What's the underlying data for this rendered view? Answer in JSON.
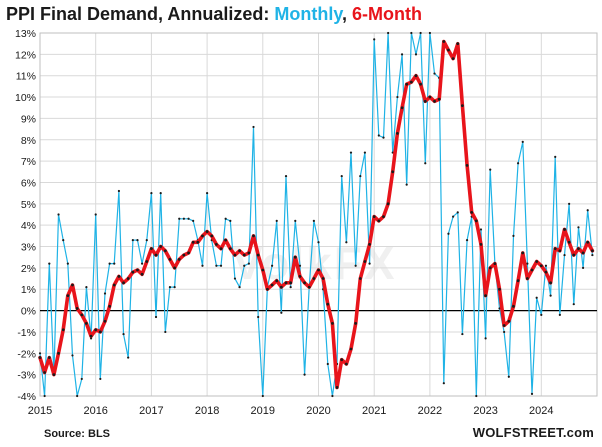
{
  "title": {
    "main": "PPI Final Demand,  Annualized: ",
    "monthly": "Monthly",
    "sep": ", ",
    "six_month": "6-Month"
  },
  "source": "Source: BLS",
  "brand": "WOLFSTREET.com",
  "watermark": "VolkFX",
  "colors": {
    "monthly": "#1fb3e6",
    "six_month": "#e8141b",
    "axis": "#000000",
    "grid": "#d9d9d9"
  },
  "chart_data": {
    "type": "line",
    "title": "PPI Final Demand,  Annualized: Monthly, 6-Month",
    "xlabel": "",
    "ylabel": "",
    "ylim": [
      -4,
      13
    ],
    "xlim": [
      2015.0,
      2025.0
    ],
    "y_tick_labels": [
      "-4%",
      "-3%",
      "-2%",
      "-1%",
      "0%",
      "1%",
      "2%",
      "3%",
      "4%",
      "5%",
      "6%",
      "7%",
      "8%",
      "9%",
      "10%",
      "11%",
      "12%",
      "13%"
    ],
    "y_ticks": [
      -4,
      -3,
      -2,
      -1,
      0,
      1,
      2,
      3,
      4,
      5,
      6,
      7,
      8,
      9,
      10,
      11,
      12,
      13
    ],
    "x_tick_labels": [
      "2015",
      "2016",
      "2017",
      "2018",
      "2019",
      "2020",
      "2021",
      "2022",
      "2023",
      "2024"
    ],
    "x_ticks": [
      2015,
      2016,
      2017,
      2018,
      2019,
      2020,
      2021,
      2022,
      2023,
      2024
    ],
    "grid": true,
    "series": [
      {
        "name": "Monthly",
        "color": "#1fb3e6",
        "x": [
          2015.0,
          2015.083,
          2015.167,
          2015.25,
          2015.333,
          2015.417,
          2015.5,
          2015.583,
          2015.667,
          2015.75,
          2015.833,
          2015.917,
          2016.0,
          2016.083,
          2016.167,
          2016.25,
          2016.333,
          2016.417,
          2016.5,
          2016.583,
          2016.667,
          2016.75,
          2016.833,
          2016.917,
          2017.0,
          2017.083,
          2017.167,
          2017.25,
          2017.333,
          2017.417,
          2017.5,
          2017.583,
          2017.667,
          2017.75,
          2017.833,
          2017.917,
          2018.0,
          2018.083,
          2018.167,
          2018.25,
          2018.333,
          2018.417,
          2018.5,
          2018.583,
          2018.667,
          2018.75,
          2018.833,
          2018.917,
          2019.0,
          2019.083,
          2019.167,
          2019.25,
          2019.333,
          2019.417,
          2019.5,
          2019.583,
          2019.667,
          2019.75,
          2019.833,
          2019.917,
          2020.0,
          2020.083,
          2020.167,
          2020.25,
          2020.333,
          2020.417,
          2020.5,
          2020.583,
          2020.667,
          2020.75,
          2020.833,
          2020.917,
          2021.0,
          2021.083,
          2021.167,
          2021.25,
          2021.333,
          2021.417,
          2021.5,
          2021.583,
          2021.667,
          2021.75,
          2021.833,
          2021.917,
          2022.0,
          2022.083,
          2022.167,
          2022.25,
          2022.333,
          2022.417,
          2022.5,
          2022.583,
          2022.667,
          2022.75,
          2022.833,
          2022.917,
          2023.0,
          2023.083,
          2023.167,
          2023.25,
          2023.333,
          2023.417,
          2023.5,
          2023.583,
          2023.667,
          2023.75,
          2023.833,
          2023.917,
          2024.0,
          2024.083,
          2024.167,
          2024.25,
          2024.333,
          2024.417,
          2024.5,
          2024.583,
          2024.667,
          2024.75,
          2024.833,
          2024.917
        ],
        "y": [
          -2.0,
          -4.0,
          2.2,
          -3.0,
          4.5,
          3.3,
          2.2,
          -2.1,
          -4.0,
          -3.2,
          1.1,
          -1.3,
          4.5,
          -3.2,
          0.8,
          2.2,
          2.2,
          5.6,
          -1.1,
          -2.2,
          3.3,
          3.3,
          2.2,
          3.3,
          5.5,
          -0.3,
          5.5,
          -1.0,
          1.1,
          1.1,
          4.3,
          4.3,
          4.3,
          4.2,
          3.3,
          2.1,
          5.5,
          3.3,
          2.1,
          2.1,
          4.3,
          4.2,
          1.5,
          1.1,
          2.1,
          2.2,
          8.6,
          -0.3,
          -4.0,
          1.1,
          2.1,
          4.2,
          -0.1,
          6.3,
          1.1,
          4.2,
          2.1,
          -3.0,
          1.1,
          4.2,
          3.2,
          1.0,
          -2.5,
          -4.0,
          -2.5,
          6.3,
          3.2,
          7.4,
          2.1,
          6.3,
          7.4,
          2.2,
          12.7,
          8.2,
          8.1,
          13.0,
          7.4,
          10.0,
          12.0,
          5.9,
          13.0,
          12.0,
          13.0,
          6.9,
          13.0,
          11.1,
          10.9,
          -3.4,
          3.6,
          4.4,
          4.6,
          -1.1,
          3.3,
          4.4,
          -4.0,
          3.8,
          -1.3,
          6.6,
          2.2,
          0.1,
          -1.0,
          -3.1,
          3.5,
          6.9,
          7.9,
          2.2,
          -3.9,
          0.6,
          -0.2,
          2.1,
          0.7,
          7.2,
          -0.2,
          2.6,
          5.0,
          0.3,
          3.9,
          2.0,
          4.7,
          2.6
        ]
      },
      {
        "name": "6-Month",
        "color": "#e8141b",
        "x": [
          2015.0,
          2015.083,
          2015.167,
          2015.25,
          2015.333,
          2015.417,
          2015.5,
          2015.583,
          2015.667,
          2015.75,
          2015.833,
          2015.917,
          2016.0,
          2016.083,
          2016.167,
          2016.25,
          2016.333,
          2016.417,
          2016.5,
          2016.583,
          2016.667,
          2016.75,
          2016.833,
          2016.917,
          2017.0,
          2017.083,
          2017.167,
          2017.25,
          2017.333,
          2017.417,
          2017.5,
          2017.583,
          2017.667,
          2017.75,
          2017.833,
          2017.917,
          2018.0,
          2018.083,
          2018.167,
          2018.25,
          2018.333,
          2018.417,
          2018.5,
          2018.583,
          2018.667,
          2018.75,
          2018.833,
          2018.917,
          2019.0,
          2019.083,
          2019.167,
          2019.25,
          2019.333,
          2019.417,
          2019.5,
          2019.583,
          2019.667,
          2019.75,
          2019.833,
          2019.917,
          2020.0,
          2020.083,
          2020.167,
          2020.25,
          2020.333,
          2020.417,
          2020.5,
          2020.583,
          2020.667,
          2020.75,
          2020.833,
          2020.917,
          2021.0,
          2021.083,
          2021.167,
          2021.25,
          2021.333,
          2021.417,
          2021.5,
          2021.583,
          2021.667,
          2021.75,
          2021.833,
          2021.917,
          2022.0,
          2022.083,
          2022.167,
          2022.25,
          2022.333,
          2022.417,
          2022.5,
          2022.583,
          2022.667,
          2022.75,
          2022.833,
          2022.917,
          2023.0,
          2023.083,
          2023.167,
          2023.25,
          2023.333,
          2023.417,
          2023.5,
          2023.583,
          2023.667,
          2023.75,
          2023.833,
          2023.917,
          2024.0,
          2024.083,
          2024.167,
          2024.25,
          2024.333,
          2024.417,
          2024.5,
          2024.583,
          2024.667,
          2024.75,
          2024.833,
          2024.917
        ],
        "y": [
          -2.2,
          -2.9,
          -2.2,
          -3.0,
          -2.0,
          -0.9,
          0.7,
          1.2,
          0.1,
          -0.2,
          -0.6,
          -1.2,
          -0.9,
          -1.0,
          -0.5,
          0.2,
          1.2,
          1.6,
          1.3,
          1.5,
          1.8,
          1.9,
          1.7,
          2.3,
          2.9,
          2.6,
          3.0,
          2.8,
          2.4,
          2.0,
          2.4,
          2.6,
          2.7,
          3.2,
          3.2,
          3.5,
          3.7,
          3.5,
          3.1,
          2.9,
          3.3,
          2.9,
          2.6,
          2.8,
          2.6,
          2.7,
          3.5,
          2.6,
          1.9,
          1.0,
          1.2,
          1.4,
          1.1,
          1.3,
          1.3,
          2.5,
          1.6,
          1.3,
          1.1,
          1.5,
          1.9,
          1.5,
          0.3,
          -0.6,
          -3.6,
          -2.3,
          -2.5,
          -1.8,
          -0.6,
          1.5,
          2.3,
          3.1,
          4.4,
          4.2,
          4.4,
          5.0,
          6.5,
          8.3,
          9.5,
          10.6,
          10.7,
          11.0,
          10.6,
          9.8,
          10.0,
          9.8,
          9.9,
          12.6,
          12.2,
          11.8,
          12.5,
          9.6,
          6.8,
          4.6,
          4.2,
          3.1,
          0.7,
          2.0,
          2.2,
          1.0,
          -0.7,
          -0.5,
          0.2,
          1.4,
          2.7,
          1.5,
          1.9,
          2.3,
          2.1,
          1.8,
          1.3,
          2.9,
          2.8,
          3.8,
          3.2,
          2.6,
          2.9,
          2.7,
          3.2,
          2.8
        ]
      }
    ]
  }
}
